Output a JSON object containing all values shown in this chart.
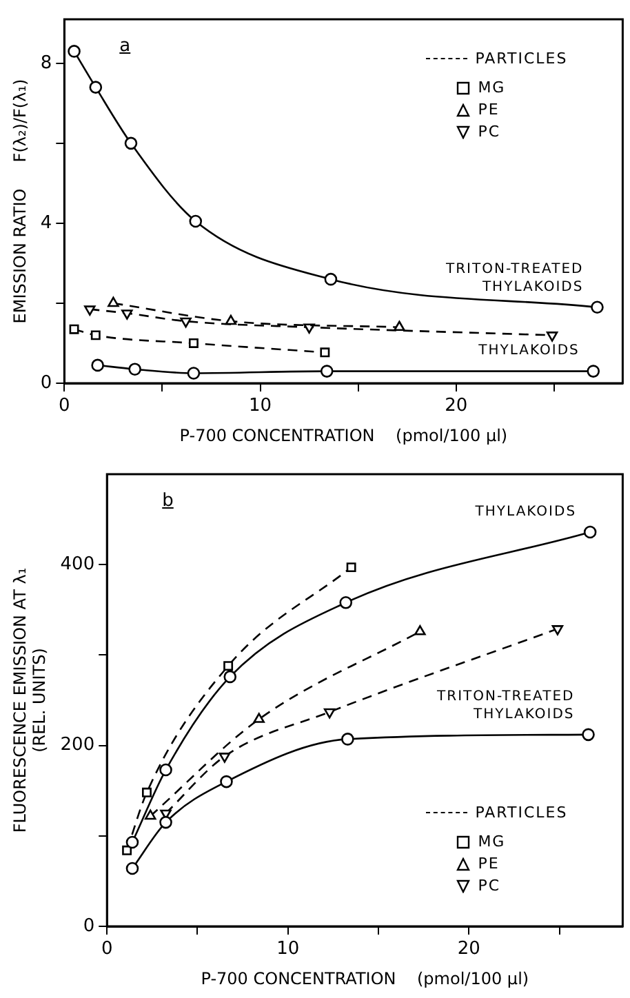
{
  "chart_data": [
    {
      "type": "line",
      "annotations": [
        "a"
      ],
      "xlabel": "P-700 CONCENTRATION    (pmol/100 µl)",
      "ylabel": "EMISSION RATIO     F(λ₂)/F(λ₁)",
      "xlim": [
        0,
        28.5
      ],
      "xticks": [
        0,
        {
          "value": 5,
          "label": null
        },
        10,
        {
          "value": 15,
          "label": null
        },
        20,
        {
          "value": 25,
          "label": null
        }
      ],
      "ylim": [
        0,
        9.1
      ],
      "yticks": [
        0,
        {
          "value": 2,
          "label": null
        },
        4,
        {
          "value": 6,
          "label": null
        },
        8
      ],
      "grid": false,
      "legend": "top right",
      "legend_title": "PARTICLES",
      "series": [
        {
          "name": "TRITON-TREATED THYLAKOIDS",
          "color": "#000000",
          "marker": "circle",
          "line_style": "solid",
          "x": [
            0.5,
            1.6,
            3.4,
            6.7,
            13.6,
            27.2
          ],
          "values": [
            8.3,
            7.4,
            6.0,
            4.05,
            2.6,
            1.9
          ]
        },
        {
          "name": "THYLAKOIDS",
          "color": "#000000",
          "marker": "circle",
          "line_style": "solid",
          "x": [
            1.7,
            3.6,
            6.6,
            13.4,
            27
          ],
          "values": [
            0.45,
            0.35,
            0.25,
            0.3,
            0.3
          ]
        },
        {
          "name": "MG",
          "color": "#000000",
          "marker": "square",
          "line_style": "dashed",
          "x": [
            0.5,
            1.6,
            6.6,
            13.3
          ],
          "values": [
            1.35,
            1.2,
            1.0,
            0.77
          ]
        },
        {
          "name": "PE",
          "color": "#000000",
          "marker": "triangle",
          "line_style": "dashed",
          "x": [
            2.5,
            8.5,
            17.1
          ],
          "values": [
            2.0,
            1.55,
            1.4
          ]
        },
        {
          "name": "PC",
          "color": "#000000",
          "marker": "triangle-down",
          "line_style": "dashed",
          "x": [
            1.3,
            3.2,
            6.2,
            12.5,
            24.9
          ],
          "values": [
            1.85,
            1.75,
            1.55,
            1.4,
            1.2
          ]
        }
      ]
    },
    {
      "type": "line",
      "annotations": [
        "b"
      ],
      "xlabel": "P-700 CONCENTRATION    (pmol/100 µl)",
      "ylabel": "FLUORESCENCE EMISSION AT λ₁\n(REL. UNITS)",
      "xlim": [
        0,
        28.5
      ],
      "xticks": [
        0,
        {
          "value": 5,
          "label": null
        },
        10,
        {
          "value": 15,
          "label": null
        },
        20,
        {
          "value": 25,
          "label": null
        }
      ],
      "ylim": [
        0,
        500
      ],
      "yticks": [
        0,
        {
          "value": 100,
          "label": null
        },
        200,
        {
          "value": 300,
          "label": null
        },
        400
      ],
      "grid": false,
      "legend": "bottom right",
      "legend_title": "PARTICLES",
      "series": [
        {
          "name": "THYLAKOIDS",
          "color": "#000000",
          "marker": "circle",
          "line_style": "solid",
          "x": [
            1.4,
            3.25,
            6.8,
            13.2,
            26.7
          ],
          "values": [
            93,
            173,
            276,
            358,
            436
          ]
        },
        {
          "name": "TRITON-TREATED THYLAKOIDS",
          "color": "#000000",
          "marker": "circle",
          "line_style": "solid",
          "x": [
            1.4,
            3.25,
            6.6,
            13.3,
            26.6
          ],
          "values": [
            64,
            115,
            160,
            207,
            212
          ]
        },
        {
          "name": "MG",
          "color": "#000000",
          "marker": "square",
          "line_style": "dashed",
          "x": [
            1.1,
            2.2,
            6.7,
            13.5
          ],
          "values": [
            84,
            148,
            288,
            397
          ]
        },
        {
          "name": "PE",
          "color": "#000000",
          "marker": "triangle",
          "line_style": "dashed",
          "x": [
            2.4,
            8.4,
            17.3
          ],
          "values": [
            122,
            229,
            326
          ]
        },
        {
          "name": "PC",
          "color": "#000000",
          "marker": "triangle-down",
          "line_style": "dashed",
          "x": [
            3.25,
            6.5,
            12.3,
            24.9
          ],
          "values": [
            125,
            188,
            237,
            329
          ]
        }
      ]
    }
  ]
}
